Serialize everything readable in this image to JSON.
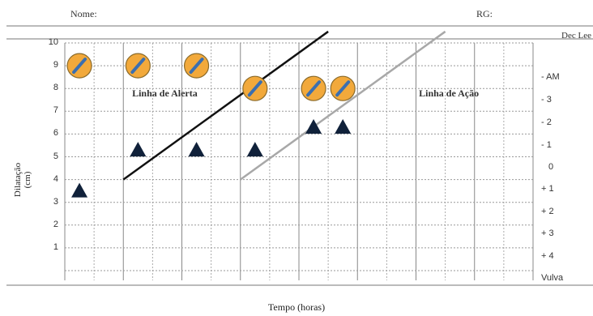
{
  "header": {
    "name_label": "Nome:",
    "rg_label": "RG:",
    "corner_label": "Dec Lee"
  },
  "chart_data": {
    "type": "scatter",
    "title": "",
    "xlabel": "Tempo (horas)",
    "ylabel_line1": "Dilatação",
    "ylabel_line2": "(cm)",
    "xlim": [
      0,
      16
    ],
    "ylim": [
      0,
      10
    ],
    "y_ticks": [
      "1",
      "2",
      "3",
      "4",
      "5",
      "6",
      "7",
      "8",
      "9",
      "10"
    ],
    "right_axis_ticks": [
      "- AM",
      "- 3",
      "- 2",
      "- 1",
      "0",
      "+ 1",
      "+ 2",
      "+ 3",
      "+ 4",
      "Vulva"
    ],
    "dilation_points": [
      {
        "x": 0.5,
        "y": 9
      },
      {
        "x": 2.5,
        "y": 9
      },
      {
        "x": 4.5,
        "y": 9
      },
      {
        "x": 6.5,
        "y": 8
      },
      {
        "x": 8.5,
        "y": 8
      },
      {
        "x": 9.5,
        "y": 8
      }
    ],
    "descent_points": [
      {
        "x": 0.5,
        "y": 3.5
      },
      {
        "x": 2.5,
        "y": 5.3
      },
      {
        "x": 4.5,
        "y": 5.3
      },
      {
        "x": 6.5,
        "y": 5.3
      },
      {
        "x": 8.5,
        "y": 6.3
      },
      {
        "x": 9.5,
        "y": 6.3
      }
    ],
    "lines": [
      {
        "name": "Linha de Alerta",
        "from": [
          2,
          4
        ],
        "to": [
          9,
          10.5
        ],
        "color": "#111111"
      },
      {
        "name": "Linha de Ação",
        "from": [
          6,
          4
        ],
        "to": [
          13,
          10.5
        ],
        "color": "#a8a8a8"
      }
    ],
    "annotations": [
      {
        "text": "Linha de Alerta",
        "x": 2.3,
        "y": 7.8
      },
      {
        "text": "Linha de Ação",
        "x": 12.1,
        "y": 7.8
      }
    ],
    "colors": {
      "dilation_fill": "#f2a93b",
      "dilation_stroke": "#8a6a2a",
      "dilation_mark": "#3b6fb0",
      "descent": "#10213a"
    }
  }
}
